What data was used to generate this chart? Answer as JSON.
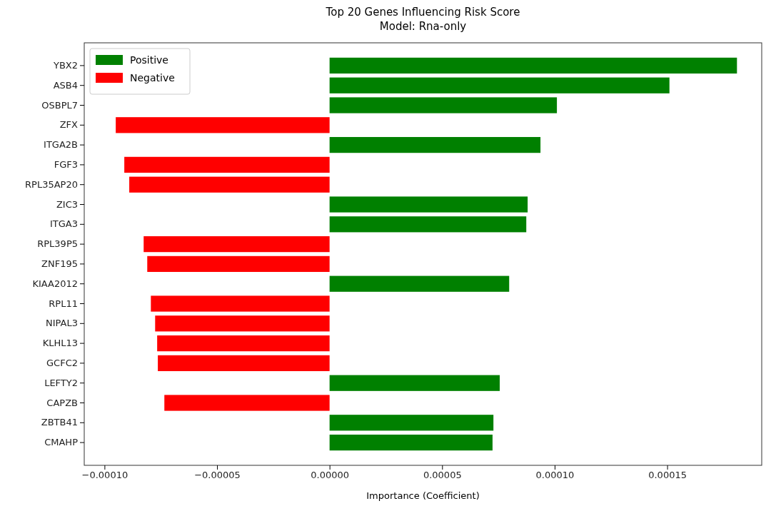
{
  "chart_data": {
    "type": "bar",
    "orientation": "horizontal",
    "title": "Top 20 Genes Influencing Risk Score\nModel: Rna-only",
    "xlabel": "Importance (Coefficient)",
    "categories": [
      "YBX2",
      "ASB4",
      "OSBPL7",
      "ZFX",
      "ITGA2B",
      "FGF3",
      "RPL35AP20",
      "ZIC3",
      "ITGA3",
      "RPL39P5",
      "ZNF195",
      "KIAA2012",
      "RPL11",
      "NIPAL3",
      "KLHL13",
      "GCFC2",
      "LEFTY2",
      "CAPZB",
      "ZBTB41",
      "CMAHP"
    ],
    "series": [
      {
        "name": "Positive",
        "color": "#008000",
        "values": [
          0.000181,
          0.000151,
          0.000101,
          null,
          9.37e-05,
          null,
          null,
          8.8e-05,
          8.74e-05,
          null,
          null,
          7.98e-05,
          null,
          null,
          null,
          null,
          7.56e-05,
          null,
          7.28e-05,
          7.24e-05
        ]
      },
      {
        "name": "Negative",
        "color": "#ff0000",
        "values": [
          null,
          null,
          null,
          -9.5e-05,
          null,
          -9.12e-05,
          -8.9e-05,
          null,
          null,
          -8.26e-05,
          -8.1e-05,
          null,
          -7.94e-05,
          -7.75e-05,
          -7.66e-05,
          -7.63e-05,
          null,
          -7.34e-05,
          null,
          null
        ]
      }
    ],
    "xlim": [
      -0.000109,
      0.000192
    ],
    "xticks": [
      {
        "value": -0.0001,
        "label": "−0.00010"
      },
      {
        "value": -5e-05,
        "label": "−0.00005"
      },
      {
        "value": 0,
        "label": "0.00000"
      },
      {
        "value": 5e-05,
        "label": "0.00005"
      },
      {
        "value": 0.0001,
        "label": "0.00010"
      },
      {
        "value": 0.00015,
        "label": "0.00015"
      }
    ],
    "legend": "top left"
  }
}
